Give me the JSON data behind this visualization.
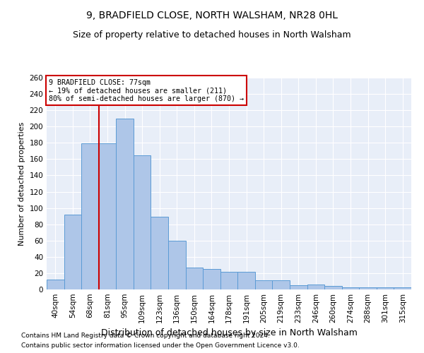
{
  "title": "9, BRADFIELD CLOSE, NORTH WALSHAM, NR28 0HL",
  "subtitle": "Size of property relative to detached houses in North Walsham",
  "xlabel": "Distribution of detached houses by size in North Walsham",
  "ylabel": "Number of detached properties",
  "categories": [
    "40sqm",
    "54sqm",
    "68sqm",
    "81sqm",
    "95sqm",
    "109sqm",
    "123sqm",
    "136sqm",
    "150sqm",
    "164sqm",
    "178sqm",
    "191sqm",
    "205sqm",
    "219sqm",
    "233sqm",
    "246sqm",
    "260sqm",
    "274sqm",
    "288sqm",
    "301sqm",
    "315sqm"
  ],
  "values": [
    12,
    92,
    179,
    179,
    210,
    165,
    89,
    60,
    27,
    25,
    22,
    22,
    11,
    11,
    5,
    6,
    4,
    3,
    3,
    3,
    3
  ],
  "bar_color": "#aec6e8",
  "bar_edge_color": "#5b9bd5",
  "annotation_line1": "9 BRADFIELD CLOSE: 77sqm",
  "annotation_line2": "← 19% of detached houses are smaller (211)",
  "annotation_line3": "80% of semi-detached houses are larger (870) →",
  "annotation_box_color": "#ffffff",
  "annotation_box_edge": "#cc0000",
  "vline_color": "#cc0000",
  "ylim": [
    0,
    260
  ],
  "yticks": [
    0,
    20,
    40,
    60,
    80,
    100,
    120,
    140,
    160,
    180,
    200,
    220,
    240,
    260
  ],
  "footer1": "Contains HM Land Registry data © Crown copyright and database right 2024.",
  "footer2": "Contains public sector information licensed under the Open Government Licence v3.0.",
  "bg_color": "#e8eef8",
  "title_fontsize": 10,
  "subtitle_fontsize": 9,
  "ylabel_fontsize": 8,
  "xlabel_fontsize": 9,
  "tick_fontsize": 7.5,
  "footer_fontsize": 6.5
}
